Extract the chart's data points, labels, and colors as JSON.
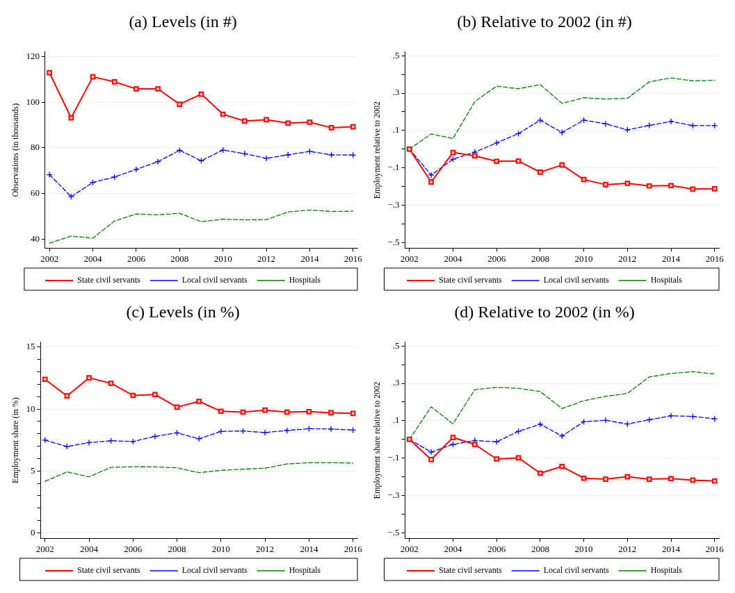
{
  "chart_data": [
    {
      "type": "line",
      "title": "(a) Levels (in #)",
      "ylabel": "Observations (in thousands)",
      "x": [
        2002,
        2003,
        2004,
        2005,
        2006,
        2007,
        2008,
        2009,
        2010,
        2011,
        2012,
        2013,
        2014,
        2015,
        2016
      ],
      "xlim": [
        2001.8,
        2016.2
      ],
      "xticks": [
        2002,
        2004,
        2006,
        2008,
        2010,
        2012,
        2014,
        2016
      ],
      "ylim": [
        36,
        122
      ],
      "yticks": [
        40,
        60,
        80,
        100,
        120
      ],
      "grid": "y",
      "legend": "bottom",
      "series": [
        {
          "name": "State civil servants",
          "color": "#ff0000",
          "marker": "square",
          "line_style": "solid",
          "values": [
            112.9,
            93.1,
            111.1,
            108.9,
            105.8,
            105.8,
            99.1,
            103.5,
            94.7,
            91.7,
            92.3,
            90.8,
            91.2,
            88.8,
            89.2
          ]
        },
        {
          "name": "Local civil servants",
          "color": "#0000ff",
          "marker": "cross",
          "line_style": "dashed",
          "values": [
            68.2,
            58.6,
            64.8,
            67.2,
            70.5,
            73.9,
            78.9,
            74.3,
            79.0,
            77.4,
            75.4,
            76.9,
            78.4,
            76.9,
            76.8
          ]
        },
        {
          "name": "Hospitals",
          "color": "#008000",
          "marker": "none",
          "line_style": "dashed",
          "values": [
            38.2,
            41.3,
            40.4,
            47.9,
            51.0,
            50.6,
            51.3,
            47.6,
            48.7,
            48.4,
            48.5,
            51.9,
            52.7,
            52.1,
            52.2
          ]
        }
      ]
    },
    {
      "type": "line",
      "title": "(b) Relative to 2002 (in #)",
      "ylabel": "Employment relative to 2002",
      "x": [
        2002,
        2003,
        2004,
        2005,
        2006,
        2007,
        2008,
        2009,
        2010,
        2011,
        2012,
        2013,
        2014,
        2015,
        2016
      ],
      "xlim": [
        2001.8,
        2016.2
      ],
      "xticks": [
        2002,
        2004,
        2006,
        2008,
        2010,
        2012,
        2014,
        2016
      ],
      "ylim": [
        -0.53,
        0.52
      ],
      "yticks": [
        {
          "value": -0.5,
          "label": "−.5"
        },
        {
          "value": -0.4,
          "label": null
        },
        {
          "value": -0.3,
          "label": "−.3"
        },
        {
          "value": -0.2,
          "label": null
        },
        {
          "value": -0.1,
          "label": "−.1"
        },
        {
          "value": 0,
          "label": null
        },
        {
          "value": 0.1,
          "label": ".1"
        },
        {
          "value": 0.2,
          "label": null
        },
        {
          "value": 0.3,
          "label": ".3"
        },
        {
          "value": 0.4,
          "label": null
        },
        {
          "value": 0.5,
          "label": ".5"
        }
      ],
      "grid": "y",
      "legend": "bottom",
      "series": [
        {
          "name": "State civil servants",
          "color": "#ff0000",
          "marker": "square",
          "line_style": "solid",
          "values": [
            0,
            -0.176,
            -0.018,
            -0.036,
            -0.065,
            -0.064,
            -0.123,
            -0.085,
            -0.163,
            -0.19,
            -0.183,
            -0.197,
            -0.195,
            -0.214,
            -0.212
          ]
        },
        {
          "name": "Local civil servants",
          "color": "#0000ff",
          "marker": "cross",
          "line_style": "dashed",
          "values": [
            0,
            -0.139,
            -0.054,
            -0.016,
            0.033,
            0.083,
            0.155,
            0.089,
            0.155,
            0.135,
            0.103,
            0.127,
            0.148,
            0.126,
            0.126
          ]
        },
        {
          "name": "Hospitals",
          "color": "#008000",
          "marker": "none",
          "line_style": "dashed",
          "values": [
            0,
            0.081,
            0.057,
            0.254,
            0.337,
            0.323,
            0.345,
            0.245,
            0.275,
            0.268,
            0.272,
            0.36,
            0.381,
            0.365,
            0.368
          ]
        }
      ]
    },
    {
      "type": "line",
      "title": "(c) Levels (in %)",
      "ylabel": "Employment share (in %)",
      "x": [
        2002,
        2003,
        2004,
        2005,
        2006,
        2007,
        2008,
        2009,
        2010,
        2011,
        2012,
        2013,
        2014,
        2015,
        2016
      ],
      "xlim": [
        2001.8,
        2016.2
      ],
      "xticks": [
        2002,
        2004,
        2006,
        2008,
        2010,
        2012,
        2014,
        2016
      ],
      "ylim": [
        -0.45,
        15.4
      ],
      "yticks": [
        0,
        {
          "value": 1,
          "label": null
        },
        {
          "value": 2,
          "label": null
        },
        {
          "value": 3,
          "label": null
        },
        {
          "value": 4,
          "label": null
        },
        5,
        {
          "value": 6,
          "label": null
        },
        {
          "value": 7,
          "label": null
        },
        {
          "value": 8,
          "label": null
        },
        {
          "value": 9,
          "label": null
        },
        10,
        {
          "value": 11,
          "label": null
        },
        {
          "value": 12,
          "label": null
        },
        {
          "value": 13,
          "label": null
        },
        {
          "value": 14,
          "label": null
        },
        15
      ],
      "grid": "y",
      "legend": "bottom",
      "series": [
        {
          "name": "State civil servants",
          "color": "#ff0000",
          "marker": "square",
          "line_style": "solid",
          "values": [
            12.4,
            11.06,
            12.52,
            12.08,
            11.1,
            11.17,
            10.15,
            10.62,
            9.82,
            9.75,
            9.91,
            9.75,
            9.79,
            9.7,
            9.65
          ]
        },
        {
          "name": "Local civil servants",
          "color": "#0000ff",
          "marker": "cross",
          "line_style": "dashed",
          "values": [
            7.49,
            6.97,
            7.29,
            7.44,
            7.38,
            7.79,
            8.08,
            7.6,
            8.19,
            8.23,
            8.1,
            8.27,
            8.41,
            8.39,
            8.3
          ]
        },
        {
          "name": "Hospitals",
          "color": "#008000",
          "marker": "none",
          "line_style": "dashed",
          "values": [
            4.16,
            4.92,
            4.53,
            5.29,
            5.34,
            5.33,
            5.25,
            4.86,
            5.05,
            5.14,
            5.22,
            5.57,
            5.66,
            5.67,
            5.64
          ]
        }
      ]
    },
    {
      "type": "line",
      "title": "(d) Relative to 2002 (in %)",
      "ylabel": "Employment share relative to 2002",
      "x": [
        2002,
        2003,
        2004,
        2005,
        2006,
        2007,
        2008,
        2009,
        2010,
        2011,
        2012,
        2013,
        2014,
        2015,
        2016
      ],
      "xlim": [
        2001.8,
        2016.2
      ],
      "xticks": [
        2002,
        2004,
        2006,
        2008,
        2010,
        2012,
        2014,
        2016
      ],
      "ylim": [
        -0.53,
        0.52
      ],
      "yticks": [
        {
          "value": -0.5,
          "label": "−.5"
        },
        {
          "value": -0.4,
          "label": null
        },
        {
          "value": -0.3,
          "label": "−.3"
        },
        {
          "value": -0.2,
          "label": null
        },
        {
          "value": -0.1,
          "label": "−.1"
        },
        {
          "value": 0,
          "label": null
        },
        {
          "value": 0.1,
          "label": ".1"
        },
        {
          "value": 0.2,
          "label": null
        },
        {
          "value": 0.3,
          "label": ".3"
        },
        {
          "value": 0.4,
          "label": null
        },
        {
          "value": 0.5,
          "label": ".5"
        }
      ],
      "grid": "y",
      "legend": "bottom",
      "series": [
        {
          "name": "State civil servants",
          "color": "#ff0000",
          "marker": "square",
          "line_style": "solid",
          "values": [
            0,
            -0.108,
            0.01,
            -0.027,
            -0.105,
            -0.099,
            -0.181,
            -0.145,
            -0.208,
            -0.213,
            -0.2,
            -0.213,
            -0.21,
            -0.218,
            -0.223
          ]
        },
        {
          "name": "Local civil servants",
          "color": "#0000ff",
          "marker": "cross",
          "line_style": "dashed",
          "values": [
            0,
            -0.068,
            -0.027,
            -0.006,
            -0.013,
            0.043,
            0.081,
            0.018,
            0.094,
            0.102,
            0.082,
            0.105,
            0.126,
            0.123,
            0.11
          ]
        },
        {
          "name": "Hospitals",
          "color": "#008000",
          "marker": "none",
          "line_style": "dashed",
          "values": [
            0,
            0.174,
            0.083,
            0.266,
            0.278,
            0.273,
            0.256,
            0.165,
            0.207,
            0.23,
            0.246,
            0.334,
            0.353,
            0.362,
            0.35
          ]
        }
      ]
    }
  ]
}
